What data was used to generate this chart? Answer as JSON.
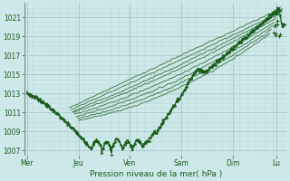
{
  "bg_color": "#cce8e8",
  "grid_color_major": "#aacccc",
  "grid_color_minor": "#bdd8d8",
  "line_color": "#1a5c1a",
  "xlabel": "Pression niveau de la mer( hPa )",
  "ylim": [
    1006.5,
    1022.5
  ],
  "yticks": [
    1007,
    1009,
    1011,
    1013,
    1015,
    1017,
    1019,
    1021
  ],
  "xtick_labels": [
    "Mer",
    "Jeu",
    "Ven",
    "Sam",
    "Dim",
    "Lu"
  ],
  "xtick_positions": [
    0,
    1,
    2,
    3,
    4,
    4.85
  ],
  "xlim": [
    -0.05,
    5.05
  ],
  "figsize": [
    3.2,
    2.0
  ],
  "dpi": 100,
  "forecast_starts": [
    [
      0.82,
      1011.5
    ],
    [
      0.85,
      1011.3
    ],
    [
      0.88,
      1011.1
    ],
    [
      0.9,
      1011.0
    ],
    [
      0.92,
      1010.8
    ],
    [
      0.95,
      1010.6
    ],
    [
      0.98,
      1010.4
    ],
    [
      1.0,
      1010.2
    ]
  ],
  "forecast_ends": [
    [
      4.88,
      1021.8
    ],
    [
      4.9,
      1021.5
    ],
    [
      4.85,
      1021.2
    ],
    [
      4.83,
      1020.9
    ],
    [
      4.8,
      1020.5
    ],
    [
      4.78,
      1020.1
    ],
    [
      4.75,
      1019.7
    ],
    [
      4.72,
      1019.3
    ]
  ],
  "forecast_mid_dips": [
    0.0,
    -0.3,
    -0.8,
    -1.2,
    -1.8,
    -2.2,
    -2.5,
    -2.8
  ]
}
